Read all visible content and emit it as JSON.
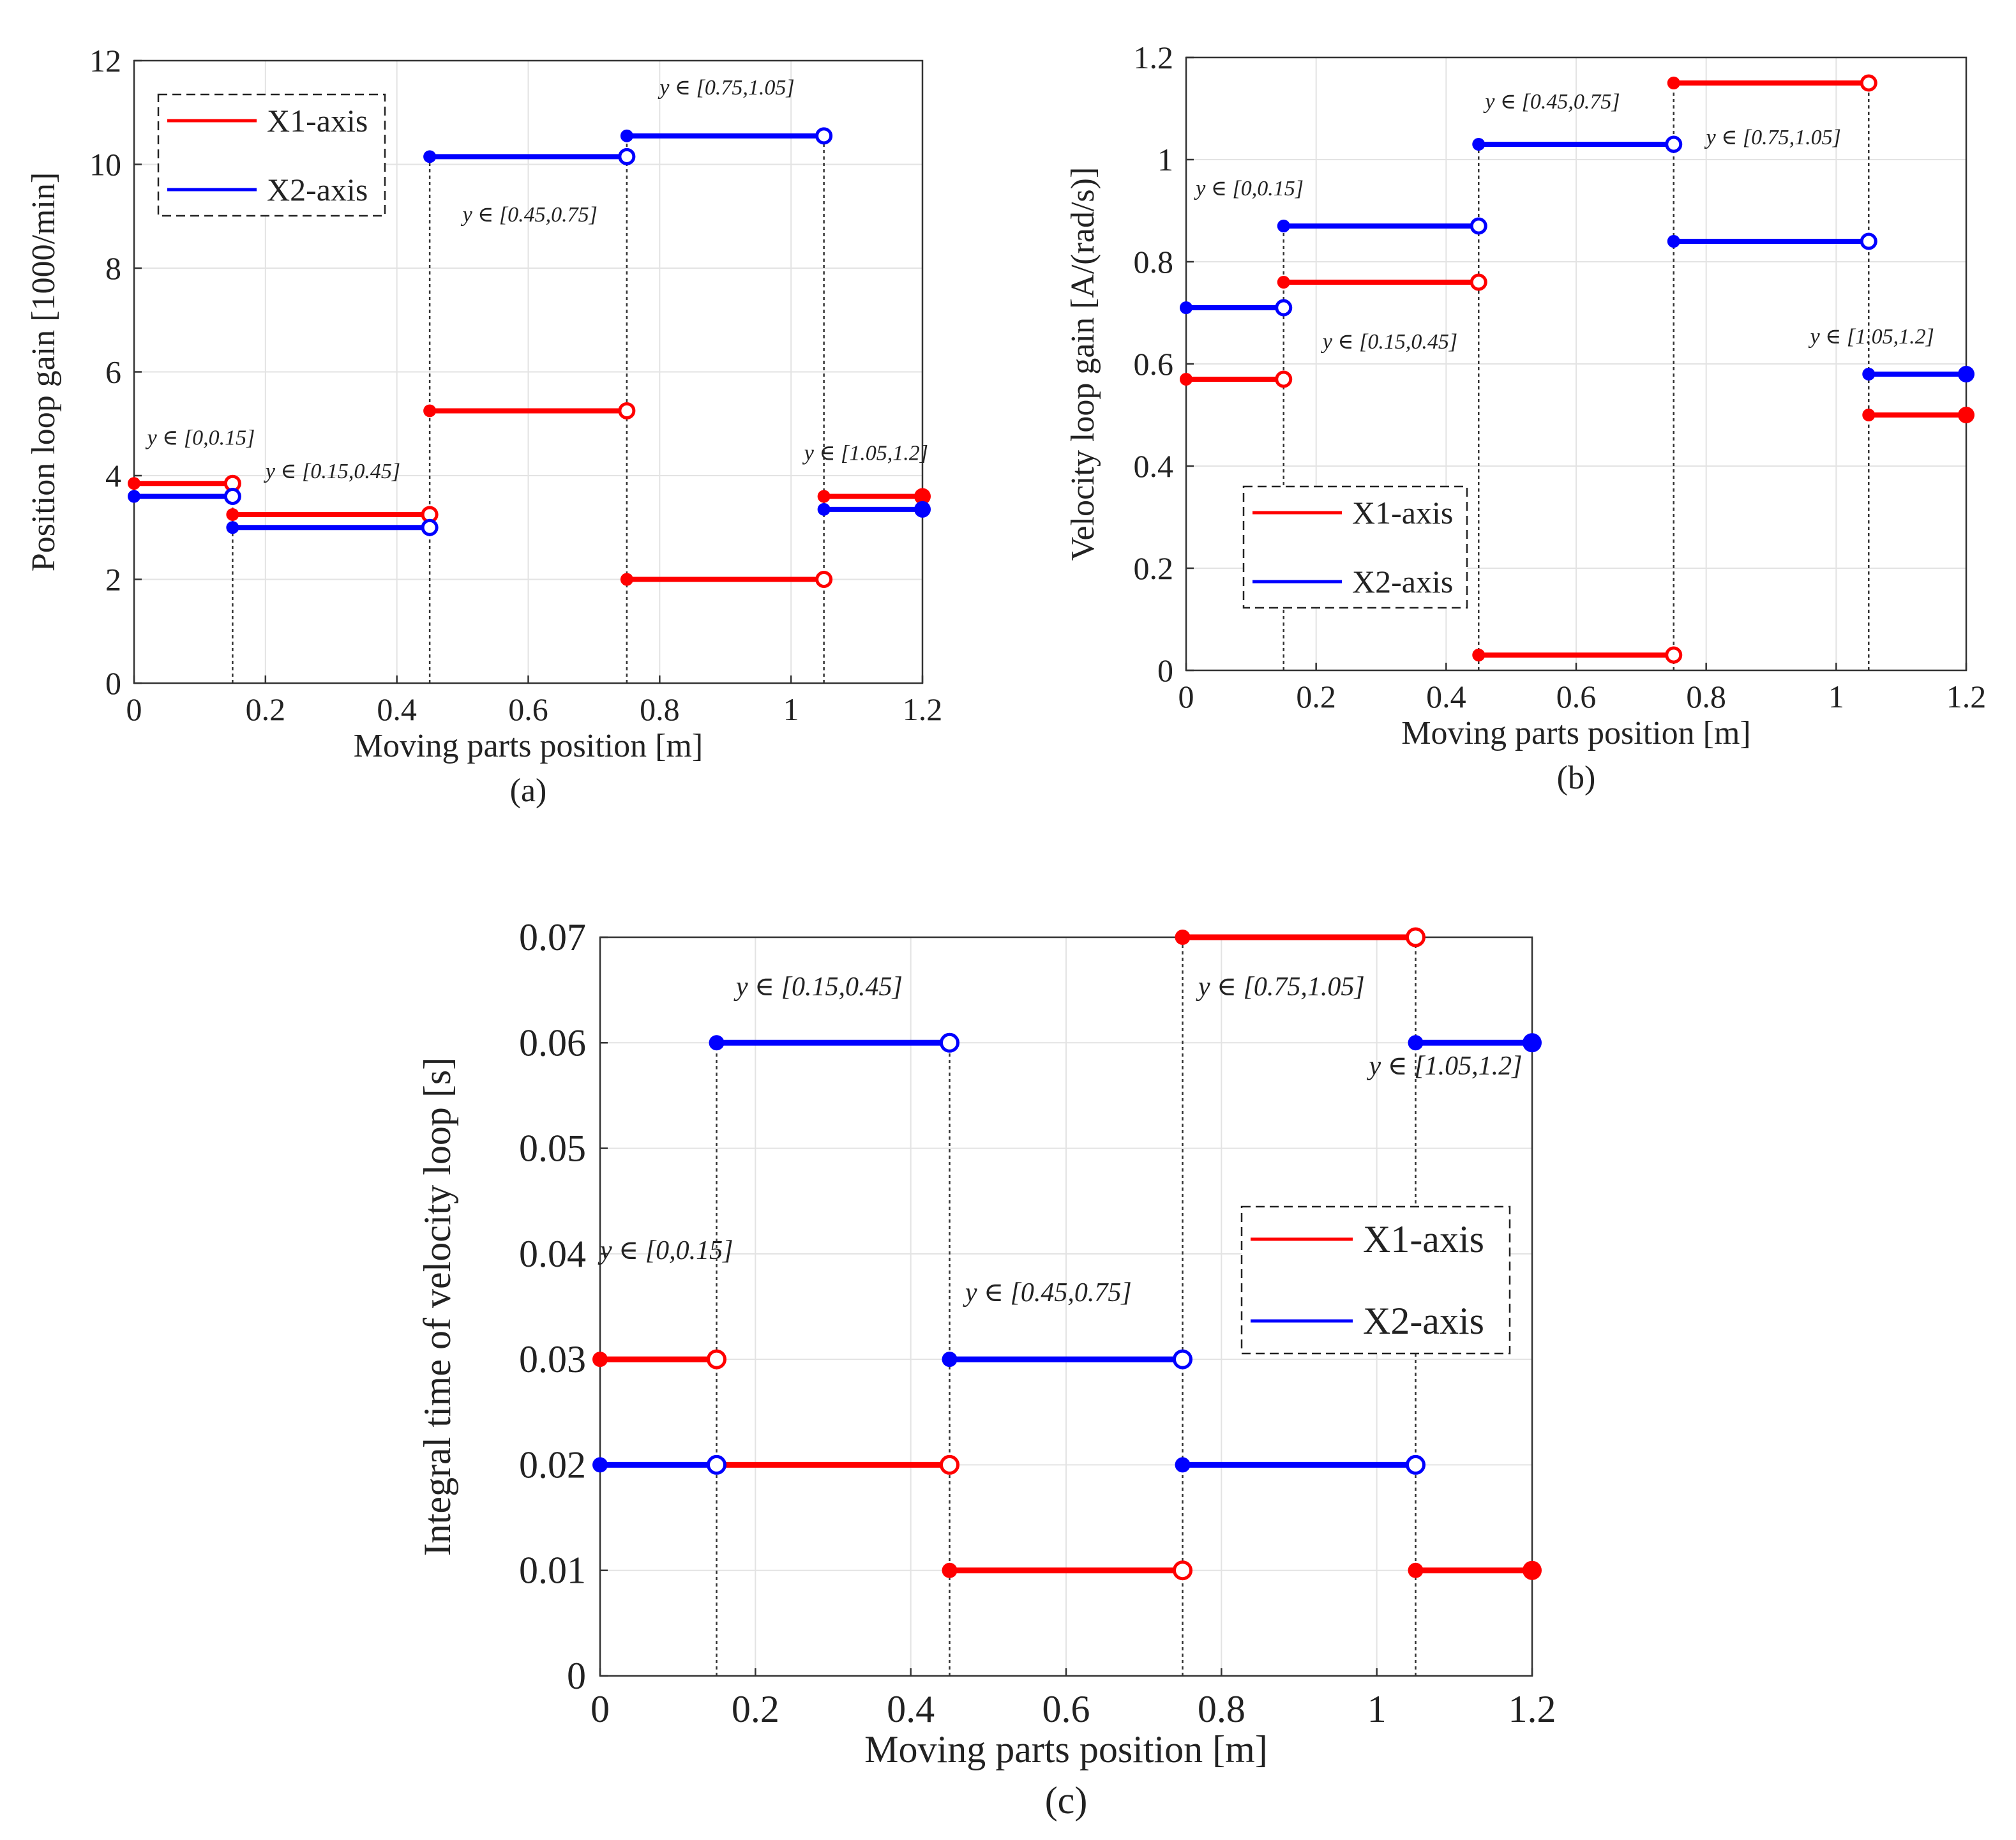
{
  "figure_captions": [
    "(a)",
    "(b)",
    "(c)"
  ],
  "colors": {
    "X1": "#ff0000",
    "X2": "#0000ff",
    "axis": "#333333",
    "grid": "#e3e3e3"
  },
  "chart_data": [
    {
      "id": "a",
      "type": "line",
      "caption": "(a)",
      "xlabel": "Moving parts position [m]",
      "ylabel": "Position loop gain [1000/min]",
      "xlim": [
        0,
        1.2
      ],
      "ylim": [
        0,
        12
      ],
      "xticks": [
        0,
        0.2,
        0.4,
        0.6,
        0.8,
        1,
        1.2
      ],
      "xtick_labels": [
        "0",
        "0.2",
        "0.4",
        "0.6",
        "0.8",
        "1",
        "1.2"
      ],
      "yticks": [
        0,
        2,
        4,
        6,
        8,
        10,
        12
      ],
      "ytick_labels": [
        "0",
        "2",
        "4",
        "6",
        "8",
        "10",
        "12"
      ],
      "grid": true,
      "legend": {
        "position": "top-left",
        "entries": [
          "X1-axis",
          "X2-axis"
        ]
      },
      "boundaries": [
        0.15,
        0.45,
        0.75,
        1.05
      ],
      "series": [
        {
          "name": "X1-axis",
          "color": "#ff0000",
          "segments": [
            [
              0,
              0.15,
              3.85
            ],
            [
              0.15,
              0.45,
              3.25
            ],
            [
              0.45,
              0.75,
              5.25
            ],
            [
              0.75,
              1.05,
              2.0
            ],
            [
              1.05,
              1.2,
              3.6
            ]
          ]
        },
        {
          "name": "X2-axis",
          "color": "#0000ff",
          "segments": [
            [
              0,
              0.15,
              3.6
            ],
            [
              0.15,
              0.45,
              3.0
            ],
            [
              0.45,
              0.75,
              10.15
            ],
            [
              0.75,
              1.05,
              10.55
            ],
            [
              1.05,
              1.2,
              3.35
            ]
          ]
        }
      ],
      "annotations": [
        {
          "text": "y ∈ [0,0.15]",
          "x": 0.02,
          "y": 4.6
        },
        {
          "text": "y ∈ [0.15,0.45]",
          "x": 0.2,
          "y": 3.95
        },
        {
          "text": "y ∈ [0.45,0.75]",
          "x": 0.5,
          "y": 8.9
        },
        {
          "text": "y ∈ [0.75,1.05]",
          "x": 0.8,
          "y": 11.35
        },
        {
          "text": "y ∈ [1.05,1.2]",
          "x": 1.02,
          "y": 4.3
        }
      ]
    },
    {
      "id": "b",
      "type": "line",
      "caption": "(b)",
      "xlabel": "Moving parts position [m]",
      "ylabel": "Velocity loop gain [A/(rad/s)]",
      "xlim": [
        0,
        1.2
      ],
      "ylim": [
        0,
        1.2
      ],
      "xticks": [
        0,
        0.2,
        0.4,
        0.6,
        0.8,
        1,
        1.2
      ],
      "xtick_labels": [
        "0",
        "0.2",
        "0.4",
        "0.6",
        "0.8",
        "1",
        "1.2"
      ],
      "yticks": [
        0,
        0.2,
        0.4,
        0.6,
        0.8,
        1,
        1.2
      ],
      "ytick_labels": [
        "0",
        "0.2",
        "0.4",
        "0.6",
        "0.8",
        "1",
        "1.2"
      ],
      "grid": true,
      "legend": {
        "position": "bottom-left",
        "entries": [
          "X1-axis",
          "X2-axis"
        ]
      },
      "boundaries": [
        0.15,
        0.45,
        0.75,
        1.05
      ],
      "series": [
        {
          "name": "X1-axis",
          "color": "#ff0000",
          "segments": [
            [
              0,
              0.15,
              0.57
            ],
            [
              0.15,
              0.45,
              0.76
            ],
            [
              0.45,
              0.75,
              0.03
            ],
            [
              0.75,
              1.05,
              1.15
            ],
            [
              1.05,
              1.2,
              0.5
            ]
          ]
        },
        {
          "name": "X2-axis",
          "color": "#0000ff",
          "segments": [
            [
              0,
              0.15,
              0.71
            ],
            [
              0.15,
              0.45,
              0.87
            ],
            [
              0.45,
              0.75,
              1.03
            ],
            [
              0.75,
              1.05,
              0.84
            ],
            [
              1.05,
              1.2,
              0.58
            ]
          ]
        }
      ],
      "annotations": [
        {
          "text": "y ∈ [0,0.15]",
          "x": 0.015,
          "y": 0.93
        },
        {
          "text": "y ∈ [0.15,0.45]",
          "x": 0.21,
          "y": 0.63
        },
        {
          "text": "y ∈ [0.45,0.75]",
          "x": 0.46,
          "y": 1.1
        },
        {
          "text": "y ∈ [0.75,1.05]",
          "x": 0.8,
          "y": 1.03
        },
        {
          "text": "y ∈ [1.05,1.2]",
          "x": 0.96,
          "y": 0.64
        }
      ]
    },
    {
      "id": "c",
      "type": "line",
      "caption": "(c)",
      "xlabel": "Moving parts position [m]",
      "ylabel": "Integral time of velocity loop  [s]",
      "xlim": [
        0,
        1.2
      ],
      "ylim": [
        0,
        0.07
      ],
      "xticks": [
        0,
        0.2,
        0.4,
        0.6,
        0.8,
        1,
        1.2
      ],
      "xtick_labels": [
        "0",
        "0.2",
        "0.4",
        "0.6",
        "0.8",
        "1",
        "1.2"
      ],
      "yticks": [
        0,
        0.01,
        0.02,
        0.03,
        0.04,
        0.05,
        0.06,
        0.07
      ],
      "ytick_labels": [
        "0",
        "0.01",
        "0.02",
        "0.03",
        "0.04",
        "0.05",
        "0.06",
        "0.07"
      ],
      "grid": true,
      "legend": {
        "position": "middle-right",
        "entries": [
          "X1-axis",
          "X2-axis"
        ]
      },
      "boundaries": [
        0.15,
        0.45,
        0.75,
        1.05
      ],
      "series": [
        {
          "name": "X1-axis",
          "color": "#ff0000",
          "segments": [
            [
              0,
              0.15,
              0.03
            ],
            [
              0.15,
              0.45,
              0.02
            ],
            [
              0.45,
              0.75,
              0.01
            ],
            [
              0.75,
              1.05,
              0.07
            ],
            [
              1.05,
              1.2,
              0.01
            ]
          ]
        },
        {
          "name": "X2-axis",
          "color": "#0000ff",
          "segments": [
            [
              0,
              0.15,
              0.02
            ],
            [
              0.15,
              0.45,
              0.06
            ],
            [
              0.45,
              0.75,
              0.03
            ],
            [
              0.75,
              1.05,
              0.02
            ],
            [
              1.05,
              1.2,
              0.06
            ]
          ]
        }
      ],
      "annotations": [
        {
          "text": "y ∈ [0,0.15]",
          "x": 0.0,
          "y": 0.0395
        },
        {
          "text": "y ∈ [0.15,0.45]",
          "x": 0.175,
          "y": 0.0645
        },
        {
          "text": "y ∈ [0.45,0.75]",
          "x": 0.47,
          "y": 0.0355
        },
        {
          "text": "y ∈ [0.75,1.05]",
          "x": 0.77,
          "y": 0.0645
        },
        {
          "text": "y ∈ [1.05,1.2]",
          "x": 0.99,
          "y": 0.057
        }
      ]
    }
  ]
}
